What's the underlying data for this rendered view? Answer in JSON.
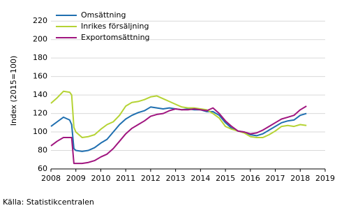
{
  "chart_data": {
    "type": "line",
    "y_label": "Index (2015=100)",
    "source": "Källa: Statistikcentralen",
    "x": [
      2008.0,
      2008.25,
      2008.5,
      2008.75,
      2008.83,
      2008.92,
      2009.0,
      2009.25,
      2009.5,
      2009.75,
      2010.0,
      2010.25,
      2010.5,
      2010.75,
      2011.0,
      2011.25,
      2011.5,
      2011.75,
      2012.0,
      2012.25,
      2012.5,
      2012.75,
      2013.0,
      2013.25,
      2013.5,
      2013.75,
      2014.0,
      2014.25,
      2014.5,
      2014.75,
      2015.0,
      2015.25,
      2015.5,
      2015.75,
      2016.0,
      2016.25,
      2016.5,
      2016.75,
      2017.0,
      2017.25,
      2017.5,
      2017.75,
      2018.0,
      2018.25
    ],
    "series": [
      {
        "name": "Omsättning",
        "color": "#1f6fb0",
        "values": [
          106,
          111,
          116,
          113,
          108,
          82,
          80,
          79,
          80,
          83,
          88,
          92,
          100,
          108,
          114,
          118,
          121,
          123,
          127,
          126,
          125,
          126,
          125,
          124,
          125,
          124,
          124,
          122,
          122,
          118,
          110,
          104,
          101,
          100,
          97,
          96,
          98,
          102,
          106,
          110,
          112,
          113,
          118,
          120
        ]
      },
      {
        "name": "Inrikes försäljning",
        "color": "#b5d334",
        "values": [
          131,
          137,
          144,
          143,
          140,
          105,
          100,
          94,
          95,
          97,
          103,
          108,
          111,
          118,
          128,
          132,
          133,
          135,
          138,
          139,
          136,
          133,
          130,
          127,
          126,
          126,
          125,
          124,
          120,
          115,
          106,
          103,
          101,
          99,
          95,
          94,
          94,
          97,
          101,
          106,
          107,
          106,
          108,
          107
        ]
      },
      {
        "name": "Exportomsättning",
        "color": "#a0157f",
        "values": [
          85,
          90,
          94,
          94,
          94,
          66,
          66,
          66,
          67,
          69,
          73,
          76,
          82,
          90,
          98,
          104,
          108,
          112,
          117,
          119,
          120,
          123,
          125,
          124,
          124,
          125,
          124,
          123,
          126,
          120,
          112,
          106,
          101,
          100,
          98,
          99,
          102,
          106,
          110,
          114,
          116,
          118,
          124,
          128
        ]
      }
    ],
    "xlim": [
      2008,
      2019
    ],
    "xticks": [
      2008,
      2009,
      2010,
      2011,
      2012,
      2013,
      2014,
      2015,
      2016,
      2017,
      2018,
      2019
    ],
    "ylim": [
      60,
      230
    ],
    "yticks": [
      60,
      80,
      100,
      120,
      140,
      160,
      180,
      200,
      220
    ],
    "grid": true,
    "legend": "upper-left"
  }
}
